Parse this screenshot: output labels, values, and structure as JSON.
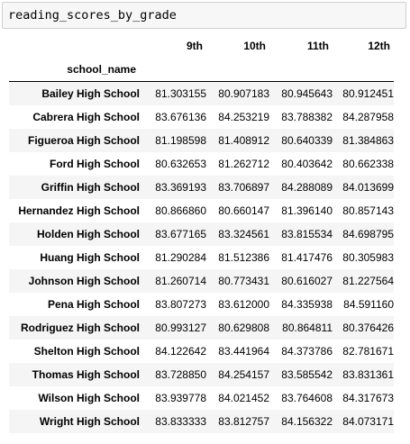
{
  "code_cell": {
    "text": "reading_scores_by_grade"
  },
  "table": {
    "index_name": "school_name",
    "columns": [
      "9th",
      "10th",
      "11th",
      "12th"
    ],
    "rows": [
      {
        "school": "Bailey High School",
        "values": [
          "81.303155",
          "80.907183",
          "80.945643",
          "80.912451"
        ]
      },
      {
        "school": "Cabrera High School",
        "values": [
          "83.676136",
          "84.253219",
          "83.788382",
          "84.287958"
        ]
      },
      {
        "school": "Figueroa High School",
        "values": [
          "81.198598",
          "81.408912",
          "80.640339",
          "81.384863"
        ]
      },
      {
        "school": "Ford High School",
        "values": [
          "80.632653",
          "81.262712",
          "80.403642",
          "80.662338"
        ]
      },
      {
        "school": "Griffin High School",
        "values": [
          "83.369193",
          "83.706897",
          "84.288089",
          "84.013699"
        ]
      },
      {
        "school": "Hernandez High School",
        "values": [
          "80.866860",
          "80.660147",
          "81.396140",
          "80.857143"
        ]
      },
      {
        "school": "Holden High School",
        "values": [
          "83.677165",
          "83.324561",
          "83.815534",
          "84.698795"
        ]
      },
      {
        "school": "Huang High School",
        "values": [
          "81.290284",
          "81.512386",
          "81.417476",
          "80.305983"
        ]
      },
      {
        "school": "Johnson High School",
        "values": [
          "81.260714",
          "80.773431",
          "80.616027",
          "81.227564"
        ]
      },
      {
        "school": "Pena High School",
        "values": [
          "83.807273",
          "83.612000",
          "84.335938",
          "84.591160"
        ]
      },
      {
        "school": "Rodriguez High School",
        "values": [
          "80.993127",
          "80.629808",
          "80.864811",
          "80.376426"
        ]
      },
      {
        "school": "Shelton High School",
        "values": [
          "84.122642",
          "83.441964",
          "84.373786",
          "82.781671"
        ]
      },
      {
        "school": "Thomas High School",
        "values": [
          "83.728850",
          "84.254157",
          "83.585542",
          "83.831361"
        ]
      },
      {
        "school": "Wilson High School",
        "values": [
          "83.939778",
          "84.021452",
          "83.764608",
          "84.317673"
        ]
      },
      {
        "school": "Wright High School",
        "values": [
          "83.833333",
          "83.812757",
          "84.156322",
          "84.073171"
        ]
      }
    ]
  }
}
